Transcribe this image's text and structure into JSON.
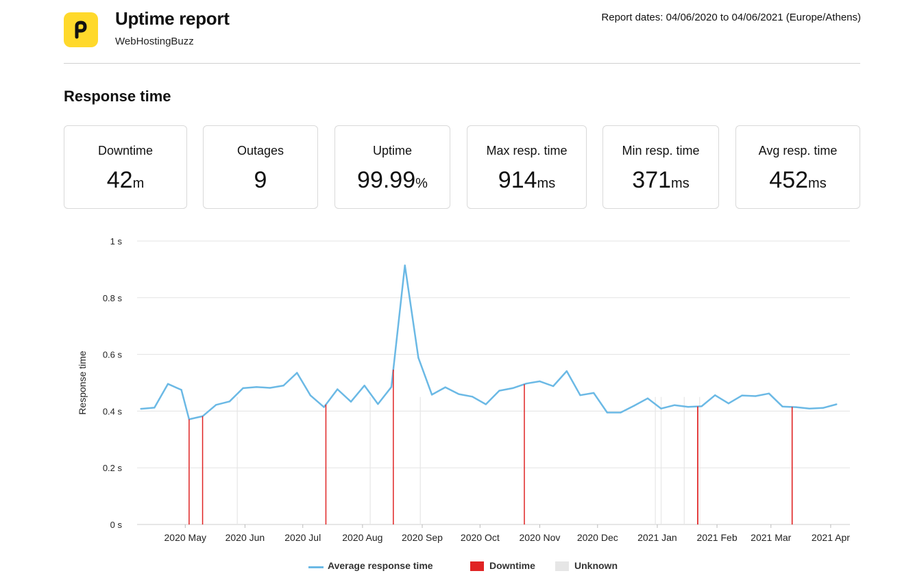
{
  "header": {
    "title": "Uptime report",
    "subtitle": "WebHostingBuzz",
    "dates": "Report dates: 04/06/2020 to 04/06/2021 (Europe/Athens)",
    "logo_icon": "p-logo-icon"
  },
  "section_title": "Response time",
  "cards": [
    {
      "label": "Downtime",
      "value": "42",
      "unit": "m"
    },
    {
      "label": "Outages",
      "value": "9",
      "unit": ""
    },
    {
      "label": "Uptime",
      "value": "99.99",
      "unit": "%"
    },
    {
      "label": "Max resp. time",
      "value": "914",
      "unit": "ms"
    },
    {
      "label": "Min resp. time",
      "value": "371",
      "unit": "ms"
    },
    {
      "label": "Avg resp. time",
      "value": "452",
      "unit": "ms"
    }
  ],
  "colors": {
    "accent": "#ffd92b",
    "line": "#6bb9e5",
    "downtime": "#e02424",
    "unknown": "#e6e6e6"
  },
  "chart_data": {
    "type": "line",
    "ylabel": "Response time",
    "y_ticks": [
      {
        "value": 0,
        "label": "0 s"
      },
      {
        "value": 0.2,
        "label": "0.2 s"
      },
      {
        "value": 0.4,
        "label": "0.4 s"
      },
      {
        "value": 0.6,
        "label": "0.6 s"
      },
      {
        "value": 0.8,
        "label": "0.8 s"
      },
      {
        "value": 1,
        "label": "1 s"
      }
    ],
    "ylim": [
      0,
      1
    ],
    "xlim": [
      "2020-04-06",
      "2021-04-11"
    ],
    "x_ticks": [
      {
        "date": "2020-05-01",
        "label": "2020 May"
      },
      {
        "date": "2020-06-01",
        "label": "2020 Jun"
      },
      {
        "date": "2020-07-01",
        "label": "2020 Jul"
      },
      {
        "date": "2020-08-01",
        "label": "2020 Aug"
      },
      {
        "date": "2020-09-01",
        "label": "2020 Sep"
      },
      {
        "date": "2020-10-01",
        "label": "2020 Oct"
      },
      {
        "date": "2020-11-01",
        "label": "2020 Nov"
      },
      {
        "date": "2020-12-01",
        "label": "2020 Dec"
      },
      {
        "date": "2021-01-01",
        "label": "2021 Jan"
      },
      {
        "date": "2021-02-01",
        "label": "2021 Feb"
      },
      {
        "date": "2021-03-01",
        "label": "2021 Mar"
      },
      {
        "date": "2021-04-01",
        "label": "2021 Apr"
      }
    ],
    "series": [
      {
        "name": "Average response time",
        "points": [
          {
            "x": "2020-04-08",
            "y": 0.408
          },
          {
            "x": "2020-04-15",
            "y": 0.412
          },
          {
            "x": "2020-04-22",
            "y": 0.496
          },
          {
            "x": "2020-04-29",
            "y": 0.475
          },
          {
            "x": "2020-05-03",
            "y": 0.371
          },
          {
            "x": "2020-05-10",
            "y": 0.382
          },
          {
            "x": "2020-05-17",
            "y": 0.422
          },
          {
            "x": "2020-05-24",
            "y": 0.434
          },
          {
            "x": "2020-05-31",
            "y": 0.481
          },
          {
            "x": "2020-06-07",
            "y": 0.485
          },
          {
            "x": "2020-06-14",
            "y": 0.482
          },
          {
            "x": "2020-06-21",
            "y": 0.49
          },
          {
            "x": "2020-06-28",
            "y": 0.535
          },
          {
            "x": "2020-07-05",
            "y": 0.455
          },
          {
            "x": "2020-07-12",
            "y": 0.414
          },
          {
            "x": "2020-07-19",
            "y": 0.477
          },
          {
            "x": "2020-07-26",
            "y": 0.433
          },
          {
            "x": "2020-08-02",
            "y": 0.49
          },
          {
            "x": "2020-08-09",
            "y": 0.425
          },
          {
            "x": "2020-08-16",
            "y": 0.485
          },
          {
            "x": "2020-08-23",
            "y": 0.914
          },
          {
            "x": "2020-08-30",
            "y": 0.588
          },
          {
            "x": "2020-09-06",
            "y": 0.458
          },
          {
            "x": "2020-09-13",
            "y": 0.484
          },
          {
            "x": "2020-09-20",
            "y": 0.46
          },
          {
            "x": "2020-09-27",
            "y": 0.451
          },
          {
            "x": "2020-10-04",
            "y": 0.424
          },
          {
            "x": "2020-10-11",
            "y": 0.472
          },
          {
            "x": "2020-10-18",
            "y": 0.481
          },
          {
            "x": "2020-10-25",
            "y": 0.497
          },
          {
            "x": "2020-11-01",
            "y": 0.505
          },
          {
            "x": "2020-11-08",
            "y": 0.488
          },
          {
            "x": "2020-11-15",
            "y": 0.541
          },
          {
            "x": "2020-11-22",
            "y": 0.456
          },
          {
            "x": "2020-11-29",
            "y": 0.464
          },
          {
            "x": "2020-12-06",
            "y": 0.395
          },
          {
            "x": "2020-12-13",
            "y": 0.395
          },
          {
            "x": "2020-12-20",
            "y": 0.419
          },
          {
            "x": "2020-12-27",
            "y": 0.445
          },
          {
            "x": "2021-01-03",
            "y": 0.409
          },
          {
            "x": "2021-01-10",
            "y": 0.421
          },
          {
            "x": "2021-01-17",
            "y": 0.415
          },
          {
            "x": "2021-01-24",
            "y": 0.417
          },
          {
            "x": "2021-01-31",
            "y": 0.456
          },
          {
            "x": "2021-02-07",
            "y": 0.427
          },
          {
            "x": "2021-02-14",
            "y": 0.455
          },
          {
            "x": "2021-02-21",
            "y": 0.453
          },
          {
            "x": "2021-02-28",
            "y": 0.462
          },
          {
            "x": "2021-03-07",
            "y": 0.416
          },
          {
            "x": "2021-03-14",
            "y": 0.414
          },
          {
            "x": "2021-03-21",
            "y": 0.409
          },
          {
            "x": "2021-03-28",
            "y": 0.411
          },
          {
            "x": "2021-04-04",
            "y": 0.424
          }
        ]
      }
    ],
    "downtime_events": [
      "2020-05-03",
      "2020-05-10",
      "2020-07-13",
      "2020-08-17",
      "2020-10-24",
      "2021-01-22",
      "2021-01-22",
      "2021-03-12",
      "2021-03-12"
    ],
    "unknown_events": [
      "2020-05-28",
      "2020-08-05",
      "2020-08-31",
      "2020-12-31",
      "2021-01-03",
      "2021-01-15",
      "2021-01-23"
    ],
    "legend": [
      {
        "name": "Average response time",
        "kind": "line"
      },
      {
        "name": "Downtime",
        "kind": "downtime"
      },
      {
        "name": "Unknown",
        "kind": "unknown"
      }
    ],
    "legend_position": "bottom",
    "grid": true
  }
}
